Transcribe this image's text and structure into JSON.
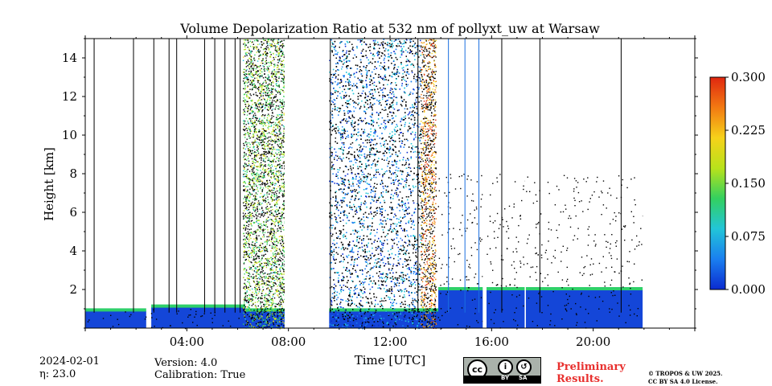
{
  "chart_data": {
    "type": "heatmap",
    "title": "Volume Depolarization Ratio at 532 nm of pollyxt_uw at Warsaw",
    "xlabel": "Time [UTC]",
    "ylabel": "Height [km]",
    "xlim_hours": [
      0,
      24
    ],
    "ylim_km": [
      0,
      15
    ],
    "x_ticks": [
      {
        "hour": 4,
        "label": "04:00"
      },
      {
        "hour": 8,
        "label": "08:00"
      },
      {
        "hour": 12,
        "label": "12:00"
      },
      {
        "hour": 16,
        "label": "16:00"
      },
      {
        "hour": 20,
        "label": "20:00"
      }
    ],
    "y_ticks": [
      {
        "value": 2,
        "label": "2"
      },
      {
        "value": 4,
        "label": "4"
      },
      {
        "value": 6,
        "label": "6"
      },
      {
        "value": 8,
        "label": "8"
      },
      {
        "value": 10,
        "label": "10"
      },
      {
        "value": 12,
        "label": "12"
      },
      {
        "value": 14,
        "label": "14"
      }
    ],
    "colorbar": {
      "range": [
        0.0,
        0.3
      ],
      "ticks": [
        "0.000",
        "0.075",
        "0.150",
        "0.225",
        "0.300"
      ],
      "colormap": [
        "#0b2bd0",
        "#1a7ff0",
        "#22c5d8",
        "#33d05f",
        "#b8e21b",
        "#f6d21a",
        "#f27a12",
        "#e02710"
      ]
    },
    "data_end_hour": 21.95,
    "no_data_gaps_hours": [
      [
        7.85,
        8.8
      ],
      [
        8.85,
        9.6
      ],
      [
        15.65,
        15.8
      ],
      [
        17.3,
        17.35
      ]
    ],
    "boundary_layer_km": [
      {
        "from": 0.0,
        "to": 2.4,
        "height": 0.9
      },
      {
        "from": 2.6,
        "to": 6.3,
        "height": 1.1
      },
      {
        "from": 6.3,
        "to": 7.85,
        "height": 0.9
      },
      {
        "from": 9.6,
        "to": 13.9,
        "height": 0.9
      },
      {
        "from": 13.9,
        "to": 21.95,
        "height": 2.0
      }
    ],
    "depolarization_regimes": [
      {
        "from": 0.0,
        "to": 6.2,
        "max_km": 1.0,
        "level": 0.02,
        "sparse": true
      },
      {
        "from": 6.2,
        "to": 7.85,
        "max_km": 15.0,
        "level": 0.15,
        "sparse": false
      },
      {
        "from": 9.6,
        "to": 13.2,
        "max_km": 15.0,
        "level": 0.05,
        "sparse": false
      },
      {
        "from": 13.2,
        "to": 13.8,
        "max_km": 15.0,
        "level": 0.25,
        "sparse": false
      },
      {
        "from": 13.8,
        "to": 21.95,
        "max_km": 8.0,
        "level": 0.0,
        "sparse": true
      }
    ]
  },
  "footer": {
    "date": "2024-02-01",
    "eta": "η: 23.0",
    "version": "Version: 4.0",
    "calibration": "Calibration: True",
    "preliminary_line1": "Preliminary",
    "preliminary_line2": "Results.",
    "copyright_line1": "© TROPOS & UW 2025.",
    "copyright_line2": "CC BY SA 4.0 License."
  },
  "license_badge": {
    "by": "BY",
    "sa": "SA",
    "cc": "cc"
  }
}
